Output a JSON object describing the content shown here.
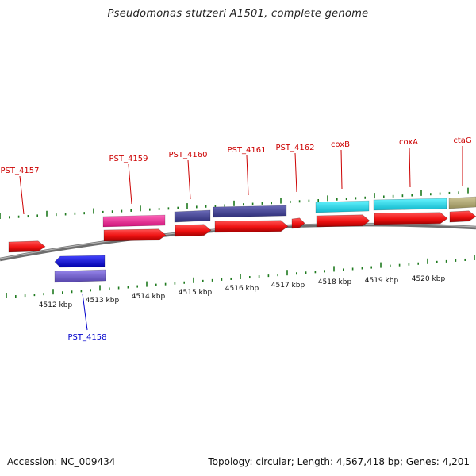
{
  "title": "Pseudomonas stutzeri A1501, complete genome",
  "footer": {
    "accession": "Accession: NC_009434",
    "summary": "Topology: circular; Length: 4,567,418 bp; Genes: 4,201"
  },
  "axis_labels": [
    "4512 kbp",
    "4513 kbp",
    "4514 kbp",
    "4515 kbp",
    "4516 kbp",
    "4517 kbp",
    "4518 kbp",
    "4519 kbp",
    "4520 kbp"
  ],
  "gene_labels": [
    "PST_4157",
    "PST_4158",
    "PST_4159",
    "PST_4160",
    "PST_4161",
    "PST_4162",
    "coxB",
    "coxA",
    "ctaG"
  ],
  "colors": {
    "backbone": "#7a7a7a",
    "cds": "#ee1111",
    "tick": "#1f7a1f",
    "label_forward": "#cc0000",
    "label_reverse": "#0000cc",
    "magenta": "#ee2288",
    "slate": "#4b4b99",
    "blue": "#1111dd",
    "lavender": "#7766cc",
    "cyan": "#22e0ee",
    "khaki": "#b8b078"
  }
}
